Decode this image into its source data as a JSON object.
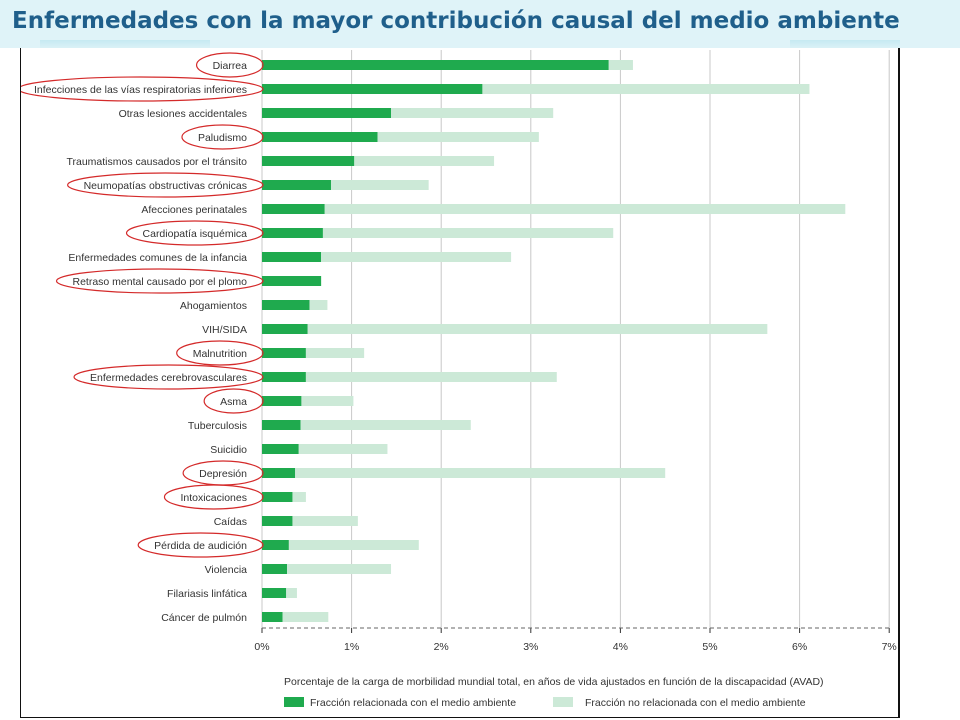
{
  "slide": {
    "title": "Enfermedades con la mayor contribución causal del medio ambiente"
  },
  "colors": {
    "environmental": "#1faa4e",
    "non_environmental": "#cce9d7",
    "circle": "#d42a2a",
    "gridline": "#c8c8c8",
    "title": "#1f5f8b"
  },
  "chart_data": {
    "type": "bar",
    "orientation": "horizontal",
    "stacked": true,
    "categories": [
      "Diarrea",
      "Infecciones de las vías respiratorias inferiores",
      "Otras lesiones accidentales",
      "Paludismo",
      "Traumatismos causados por el tránsito",
      "Neumopatías obstructivas crónicas",
      "Afecciones perinatales",
      "Cardiopatía isquémica",
      "Enfermedades comunes de la infancia",
      "Retraso mental causado por el plomo",
      "Ahogamientos",
      "VIH/SIDA",
      "Malnutrition",
      "Enfermedades cerebrovasculares",
      "Asma",
      "Tuberculosis",
      "Suicidio",
      "Depresión",
      "Intoxicaciones",
      "Caídas",
      "Pérdida de audición",
      "Violencia",
      "Filariasis linfática",
      "Cáncer de pulmón"
    ],
    "series": [
      {
        "name": "Fracción relacionada con el medio ambiente",
        "values": [
          3.87,
          2.46,
          1.44,
          1.29,
          1.03,
          0.77,
          0.7,
          0.68,
          0.66,
          0.66,
          0.53,
          0.51,
          0.49,
          0.49,
          0.44,
          0.43,
          0.41,
          0.37,
          0.34,
          0.34,
          0.3,
          0.28,
          0.27,
          0.23
        ]
      },
      {
        "name": "Fracción no relacionada con el medio ambiente",
        "values": [
          0.27,
          3.65,
          1.81,
          1.8,
          1.56,
          1.09,
          5.81,
          3.24,
          2.12,
          0.0,
          0.2,
          5.13,
          0.65,
          2.8,
          0.58,
          1.9,
          0.99,
          4.13,
          0.15,
          0.73,
          1.45,
          1.16,
          0.12,
          0.51
        ]
      }
    ],
    "highlighted": [
      "Diarrea",
      "Infecciones de las vías respiratorias inferiores",
      "Paludismo",
      "Neumopatías obstructivas crónicas",
      "Cardiopatía isquémica",
      "Retraso mental causado por el plomo",
      "Malnutrition",
      "Enfermedades cerebrovasculares",
      "Asma",
      "Depresión",
      "Intoxicaciones",
      "Pérdida de audición"
    ],
    "x_ticks": [
      "0%",
      "1%",
      "2%",
      "3%",
      "4%",
      "5%",
      "6%",
      "7%"
    ],
    "xlim": [
      0,
      7
    ],
    "xlabel": "Porcentaje de la carga de morbilidad mundial total, en años de vida ajustados en función de la discapacidad (AVAD)",
    "grid": true,
    "legend_position": "bottom"
  }
}
